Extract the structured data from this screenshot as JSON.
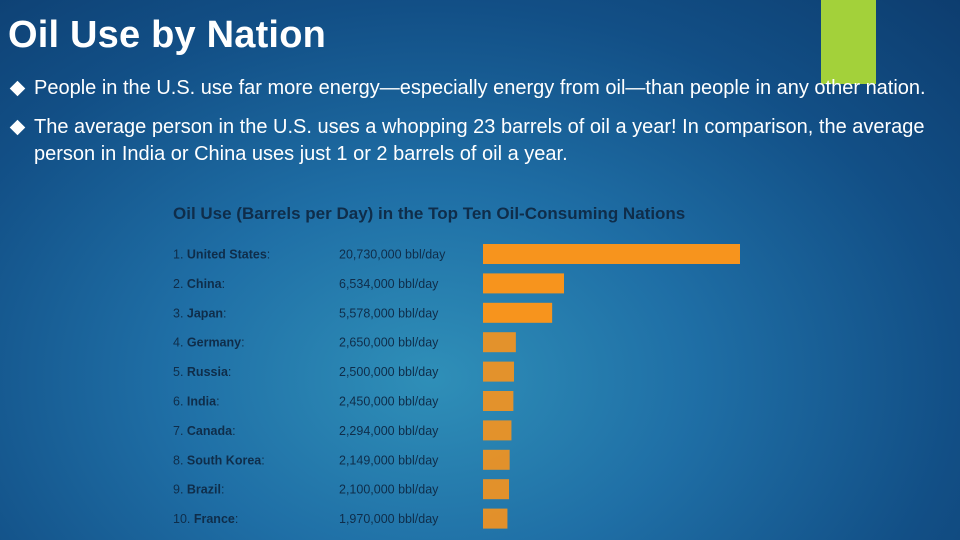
{
  "slide": {
    "title": "Oil Use by Nation",
    "accent_color": "#a3d13a",
    "bullets": [
      "People in the U.S. use far more energy—especially energy from oil—than people in any other nation.",
      "The average person in the U.S. uses a whopping 23 barrels of oil a year! In comparison, the average person in India or China uses just 1 or 2 barrels of oil a year."
    ]
  },
  "chart_data": {
    "type": "bar",
    "orientation": "horizontal",
    "title": "Oil Use (Barrels per Day) in the Top Ten Oil-Consuming Nations",
    "categories": [
      "United States",
      "China",
      "Japan",
      "Germany",
      "Russia",
      "India",
      "Canada",
      "South Korea",
      "Brazil",
      "France"
    ],
    "ranks": [
      "1.",
      "2.",
      "3.",
      "4.",
      "5.",
      "6.",
      "7.",
      "8.",
      "9.",
      "10."
    ],
    "values": [
      20730000,
      6534000,
      5578000,
      2650000,
      2500000,
      2450000,
      2294000,
      2149000,
      2100000,
      1970000
    ],
    "value_labels": [
      "20,730,000 bbl/day",
      "6,534,000 bbl/day",
      "5,578,000 bbl/day",
      "2,650,000 bbl/day",
      "2,500,000 bbl/day",
      "2,450,000 bbl/day",
      "2,294,000 bbl/day",
      "2,149,000 bbl/day",
      "2,100,000 bbl/day",
      "1,970,000 bbl/day"
    ],
    "bar_color": "#f7941d",
    "xlim": [
      0,
      20730000
    ]
  }
}
